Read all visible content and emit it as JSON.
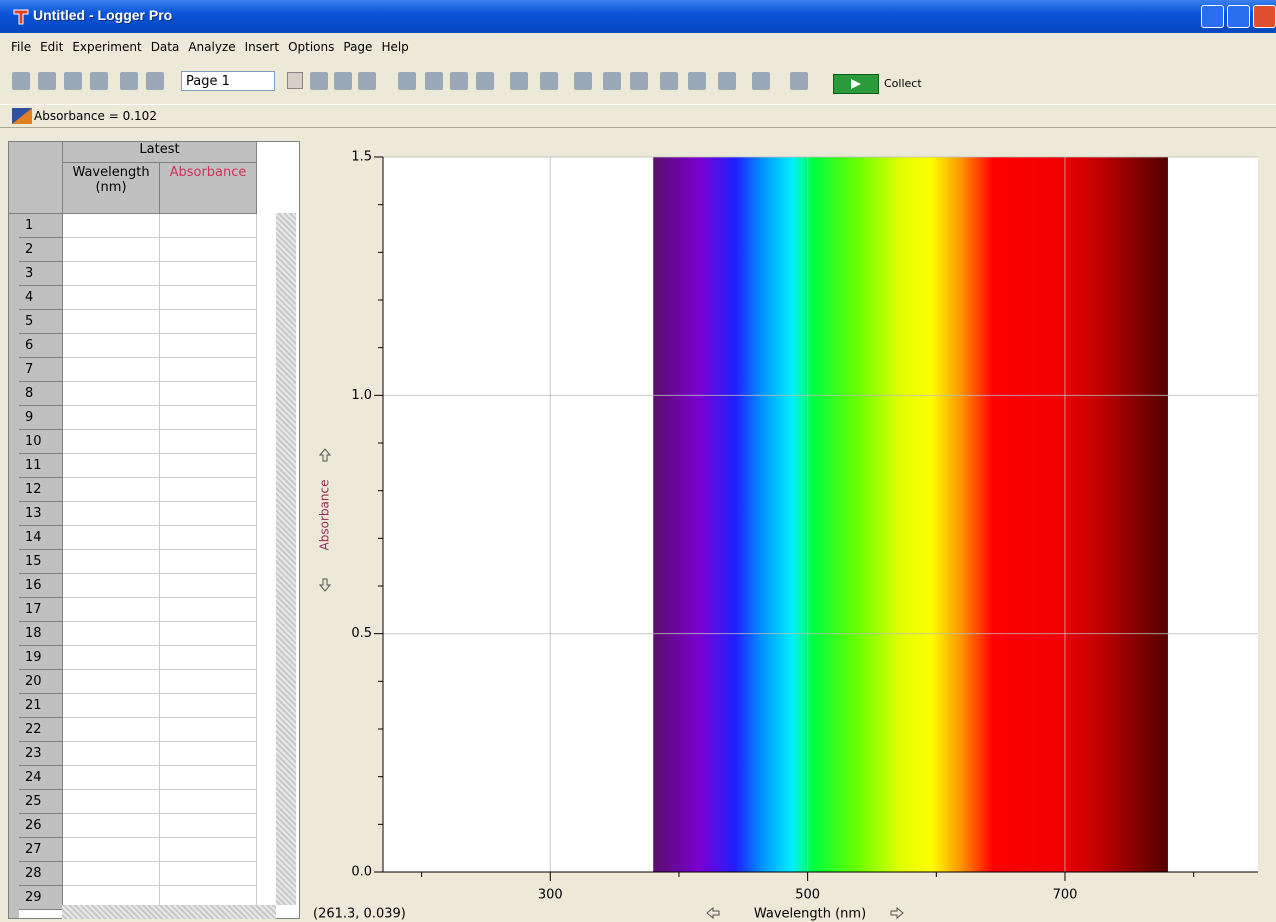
{
  "window": {
    "title": "Untitled - Logger Pro"
  },
  "menu": [
    "File",
    "Edit",
    "Experiment",
    "Data",
    "Analyze",
    "Insert",
    "Options",
    "Page",
    "Help"
  ],
  "toolbar": {
    "page": "Page 1",
    "collect": "Collect"
  },
  "meter": {
    "label": "Absorbance = 0.102"
  },
  "table": {
    "group": "Latest",
    "columns": [
      "Wavelength (nm)",
      "Absorbance"
    ],
    "rows": [
      1,
      2,
      3,
      4,
      5,
      6,
      7,
      8,
      9,
      10,
      11,
      12,
      13,
      14,
      15,
      16,
      17,
      18,
      19,
      20,
      21,
      22,
      23,
      24,
      25,
      26,
      27,
      28,
      29
    ]
  },
  "graph": {
    "type": "spectrum",
    "y_label": "Absorbance",
    "x_label": "Wavelength (nm)",
    "xlim": [
      170,
      850
    ],
    "ylim": [
      0,
      1.5
    ],
    "xticks": [
      300,
      500,
      700
    ],
    "xminorticks": [
      200,
      400,
      600,
      800
    ],
    "yticks": [
      {
        "value": 0,
        "label": "0.0"
      },
      0.5,
      {
        "value": 1,
        "label": "1.0"
      },
      1.5
    ],
    "yminorticks": [
      0.1,
      0.2,
      0.3,
      0.4,
      0.6,
      0.7,
      0.8,
      0.9,
      1.1,
      1.2,
      1.3,
      1.4
    ],
    "spectrum": [
      380,
      780
    ],
    "grid": true
  },
  "status": {
    "coordinates": "(261.3, 0.039)"
  }
}
